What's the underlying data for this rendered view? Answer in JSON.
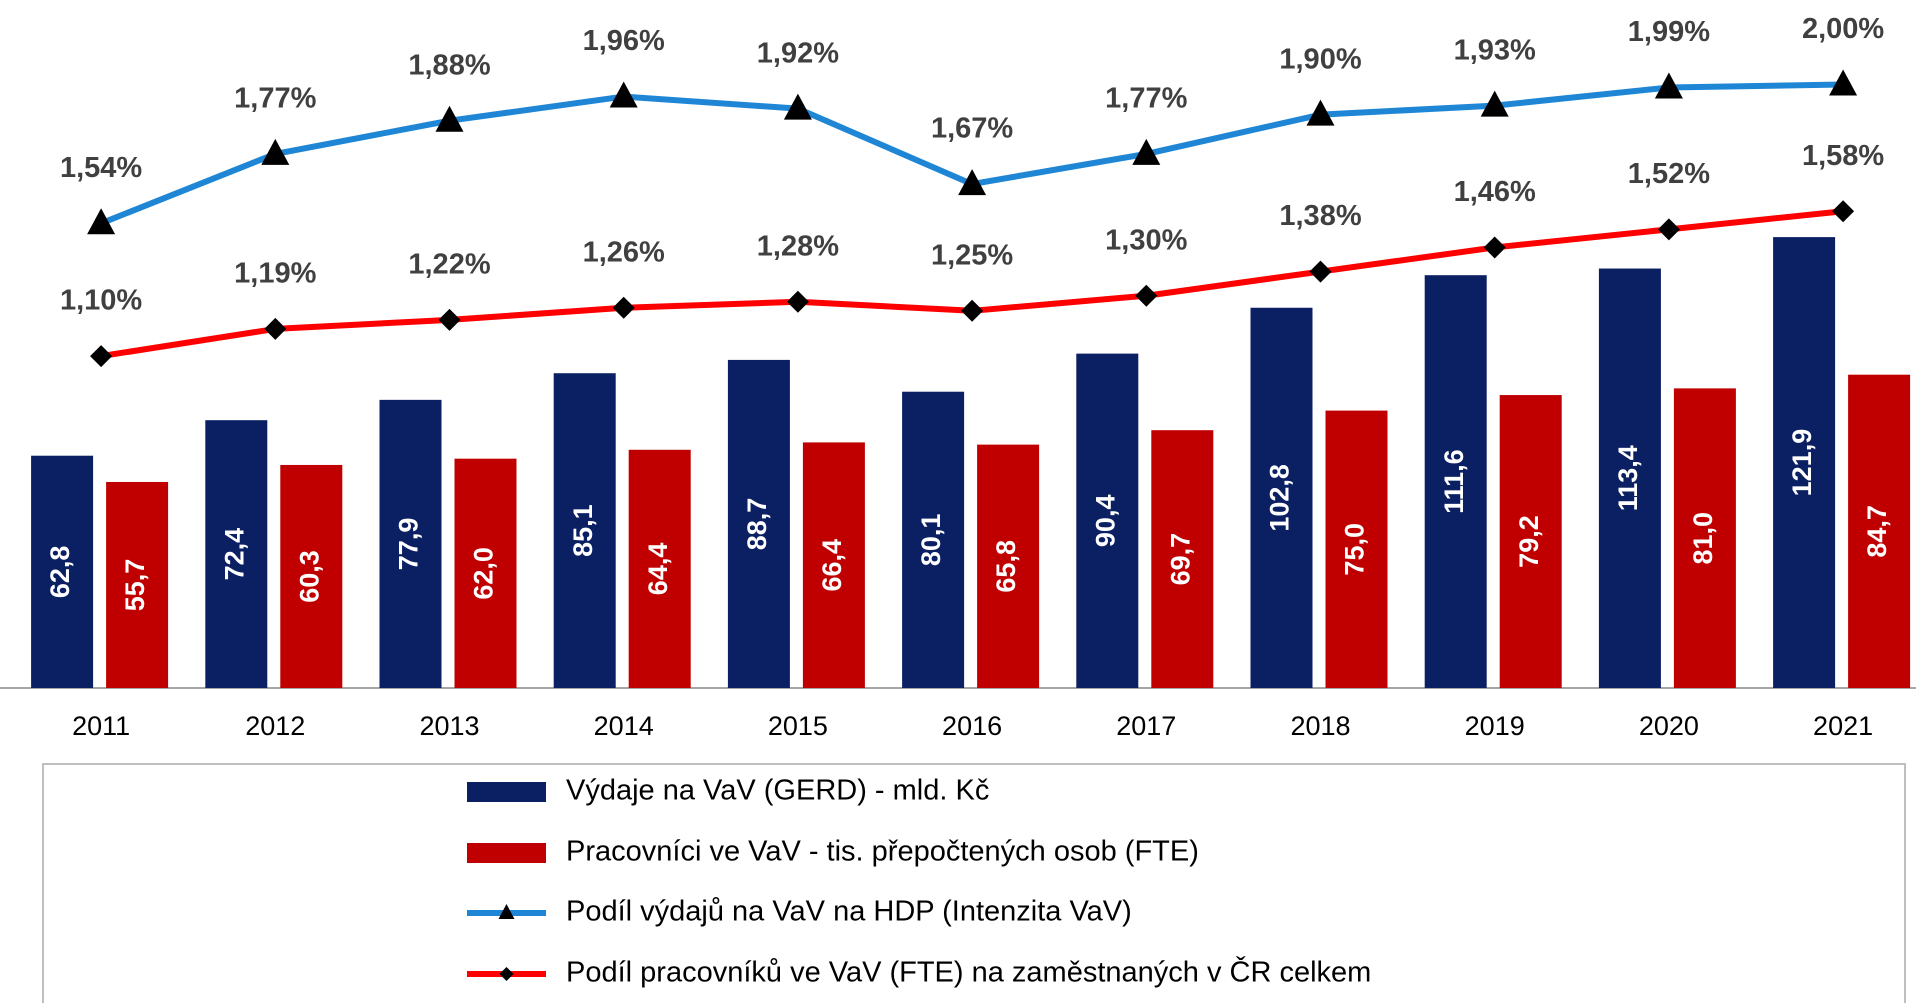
{
  "chart_data": {
    "type": "bar",
    "categories": [
      "2011",
      "2012",
      "2013",
      "2014",
      "2015",
      "2016",
      "2017",
      "2018",
      "2019",
      "2020",
      "2021"
    ],
    "ylim": [
      0,
      186
    ],
    "y2lim": [
      0,
      2.28
    ],
    "series": [
      {
        "name": "Výdaje na VaV (GERD) - mld. Kč",
        "type": "bar",
        "color": "#0b1f63",
        "values": [
          62.8,
          72.4,
          77.9,
          85.1,
          88.7,
          80.1,
          90.4,
          102.8,
          111.6,
          113.4,
          121.9
        ],
        "value_labels": [
          "62,8",
          "72,4",
          "77,9",
          "85,1",
          "88,7",
          "80,1",
          "90,4",
          "102,8",
          "111,6",
          "113,4",
          "121,9"
        ]
      },
      {
        "name": "Pracovníci ve VaV - tis. přepočtených osob (FTE)",
        "type": "bar",
        "color": "#c00000",
        "values": [
          55.7,
          60.3,
          62.0,
          64.4,
          66.4,
          65.8,
          69.7,
          75.0,
          79.2,
          81.0,
          84.7
        ],
        "value_labels": [
          "55,7",
          "60,3",
          "62,0",
          "64,4",
          "66,4",
          "65,8",
          "69,7",
          "75,0",
          "79,2",
          "81,0",
          "84,7"
        ]
      },
      {
        "name": "Podíl výdajů na VaV na HDP (Intenzita VaV)",
        "type": "line",
        "axis": "y2",
        "color": "#1f86d6",
        "marker": "triangle",
        "values": [
          1.54,
          1.77,
          1.88,
          1.96,
          1.92,
          1.67,
          1.77,
          1.9,
          1.93,
          1.99,
          2.0
        ],
        "value_labels": [
          "1,54%",
          "1,77%",
          "1,88%",
          "1,96%",
          "1,92%",
          "1,67%",
          "1,77%",
          "1,90%",
          "1,93%",
          "1,99%",
          "2,00%"
        ]
      },
      {
        "name": "Podíl pracovníků ve VaV (FTE) na zaměstnaných v ČR celkem",
        "type": "line",
        "axis": "y2",
        "color": "#ff0000",
        "marker": "diamond",
        "values": [
          1.1,
          1.19,
          1.22,
          1.26,
          1.28,
          1.25,
          1.3,
          1.38,
          1.46,
          1.52,
          1.58
        ],
        "value_labels": [
          "1,10%",
          "1,19%",
          "1,22%",
          "1,26%",
          "1,28%",
          "1,25%",
          "1,30%",
          "1,38%",
          "1,46%",
          "1,52%",
          "1,58%"
        ]
      }
    ]
  }
}
